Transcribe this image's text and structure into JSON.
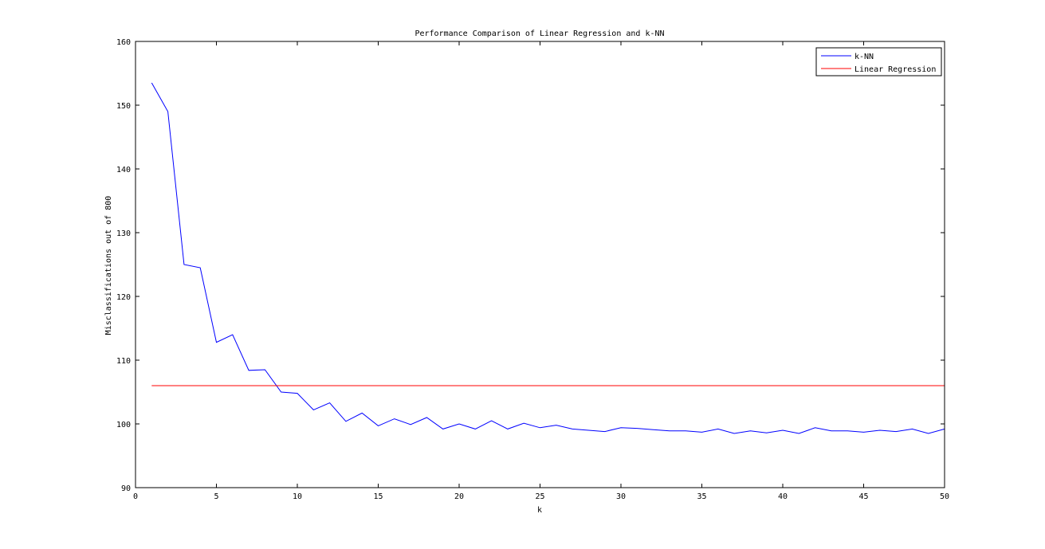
{
  "chart_data": {
    "type": "line",
    "title": "Performance Comparison of Linear Regression and k-NN",
    "xlabel": "k",
    "ylabel": "Misclassifications out of 800",
    "xlim": [
      0,
      50
    ],
    "ylim": [
      90,
      160
    ],
    "xticks": [
      0,
      5,
      10,
      15,
      20,
      25,
      30,
      35,
      40,
      45,
      50
    ],
    "yticks": [
      90,
      100,
      110,
      120,
      130,
      140,
      150,
      160
    ],
    "grid": false,
    "legend_position": "top-right",
    "series": [
      {
        "name": "k-NN",
        "color": "#0000ff",
        "x": [
          1,
          2,
          3,
          4,
          5,
          6,
          7,
          8,
          9,
          10,
          11,
          12,
          13,
          14,
          15,
          16,
          17,
          18,
          19,
          20,
          21,
          22,
          23,
          24,
          25,
          26,
          27,
          28,
          29,
          30,
          31,
          32,
          33,
          34,
          35,
          36,
          37,
          38,
          39,
          40,
          41,
          42,
          43,
          44,
          45,
          46,
          47,
          48,
          49,
          50
        ],
        "values": [
          153.5,
          149,
          125,
          124.5,
          112.8,
          114,
          108.4,
          108.5,
          105,
          104.8,
          102.2,
          103.3,
          100.4,
          101.7,
          99.7,
          100.8,
          99.9,
          101,
          99.2,
          100,
          99.2,
          100.5,
          99.2,
          100.1,
          99.4,
          99.8,
          99.2,
          99,
          98.8,
          99.4,
          99.3,
          99.1,
          98.9,
          98.9,
          98.7,
          99.2,
          98.5,
          98.9,
          98.6,
          99,
          98.5,
          99.4,
          98.9,
          98.9,
          98.7,
          99,
          98.8,
          99.2,
          98.5,
          99.2
        ]
      },
      {
        "name": "Linear Regression",
        "color": "#ff0000",
        "x": [
          1,
          50
        ],
        "values": [
          106,
          106
        ]
      }
    ]
  }
}
